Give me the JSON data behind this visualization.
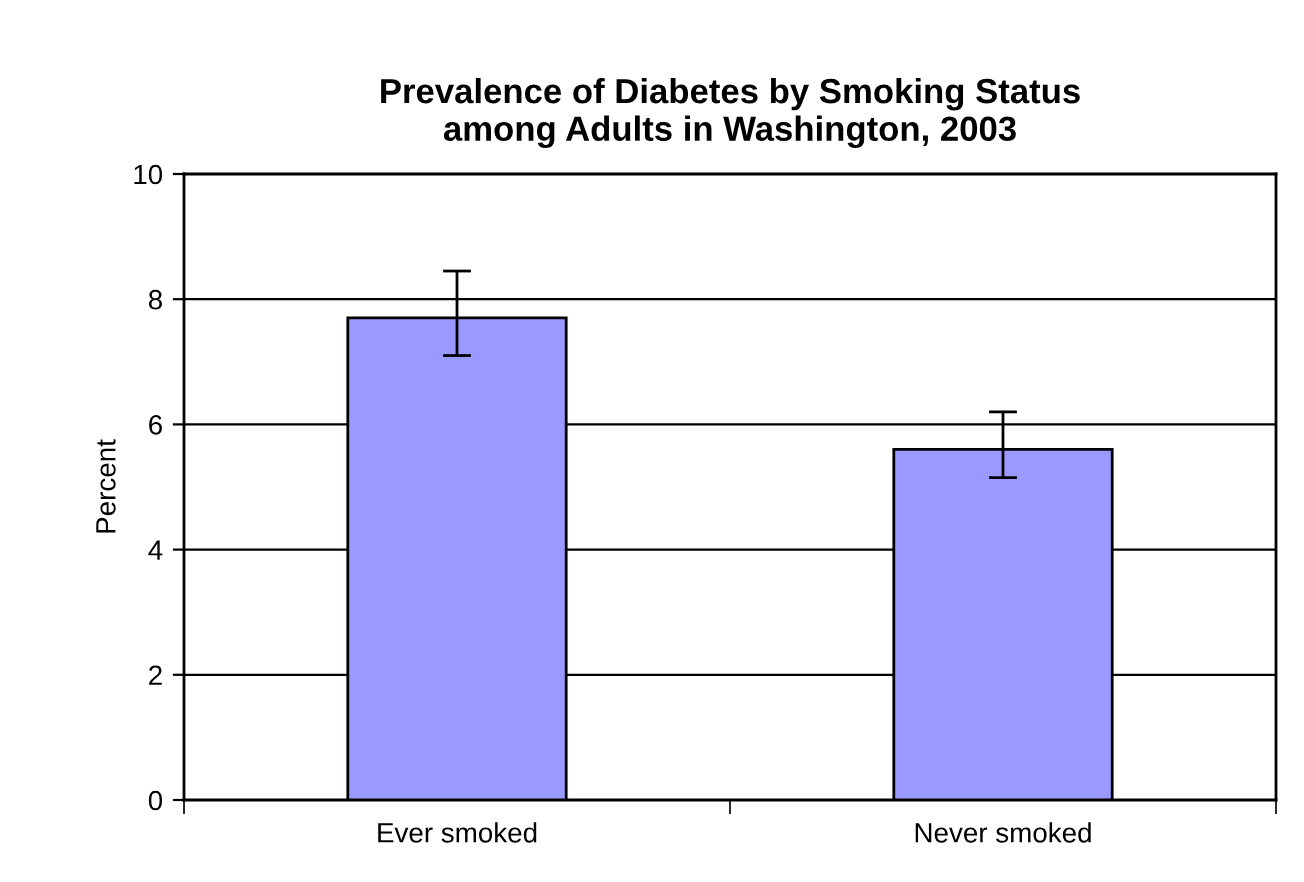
{
  "chart_data": {
    "type": "bar",
    "title": "Prevalence of Diabetes by Smoking Status\namong Adults in Washington, 2003",
    "ylabel": "Percent",
    "categories": [
      "Ever smoked",
      "Never smoked"
    ],
    "values": [
      7.7,
      5.6
    ],
    "errors": [
      [
        7.1,
        8.45
      ],
      [
        5.15,
        6.2
      ]
    ],
    "color": "#9999ff",
    "ylim": [
      0,
      10
    ],
    "yticks": [
      0,
      2,
      4,
      6,
      8,
      10
    ],
    "grid": "y"
  }
}
